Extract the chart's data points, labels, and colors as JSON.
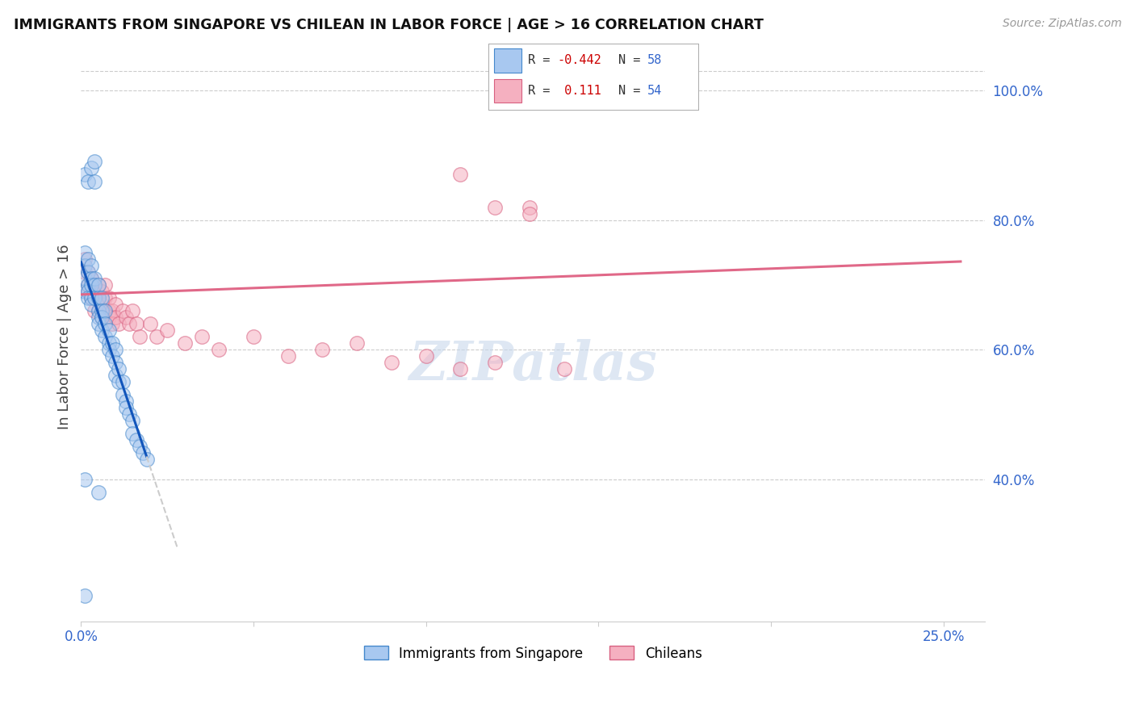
{
  "title": "IMMIGRANTS FROM SINGAPORE VS CHILEAN IN LABOR FORCE | AGE > 16 CORRELATION CHART",
  "source": "Source: ZipAtlas.com",
  "ylabel": "In Labor Force | Age > 16",
  "color_singapore": "#a8c8f0",
  "color_singapore_edge": "#4488cc",
  "color_chilean": "#f5b0c0",
  "color_chilean_edge": "#d86080",
  "color_line_singapore": "#1155bb",
  "color_line_chilean": "#e06888",
  "color_line_extrap": "#cccccc",
  "color_grid": "#cccccc",
  "color_tick_label": "#3366cc",
  "color_title": "#111111",
  "color_source": "#999999",
  "color_ylabel": "#444444",
  "xlim": [
    0.0,
    0.262
  ],
  "ylim": [
    0.18,
    1.06
  ],
  "x_ticks": [
    0.0,
    0.05,
    0.1,
    0.15,
    0.2,
    0.25
  ],
  "x_tick_labels": [
    "0.0%",
    "",
    "",
    "",
    "",
    "25.0%"
  ],
  "y_ticks_right": [
    0.4,
    0.6,
    0.8,
    1.0
  ],
  "y_tick_labels_right": [
    "40.0%",
    "60.0%",
    "80.0%",
    "100.0%"
  ],
  "legend_label1": "Immigrants from Singapore",
  "legend_label2": "Chileans",
  "scatter_size": 160,
  "scatter_alpha": 0.55,
  "line_width": 2.2,
  "singapore_x": [
    0.001,
    0.001,
    0.001,
    0.001,
    0.002,
    0.002,
    0.002,
    0.002,
    0.002,
    0.003,
    0.003,
    0.003,
    0.003,
    0.003,
    0.004,
    0.004,
    0.004,
    0.005,
    0.005,
    0.005,
    0.005,
    0.005,
    0.006,
    0.006,
    0.006,
    0.006,
    0.007,
    0.007,
    0.007,
    0.008,
    0.008,
    0.008,
    0.009,
    0.009,
    0.01,
    0.01,
    0.01,
    0.011,
    0.011,
    0.012,
    0.012,
    0.013,
    0.013,
    0.014,
    0.015,
    0.015,
    0.016,
    0.017,
    0.018,
    0.019,
    0.001,
    0.002,
    0.003,
    0.004,
    0.004,
    0.005,
    0.001,
    0.001
  ],
  "singapore_y": [
    0.75,
    0.73,
    0.71,
    0.69,
    0.74,
    0.72,
    0.7,
    0.69,
    0.68,
    0.73,
    0.71,
    0.7,
    0.68,
    0.67,
    0.71,
    0.7,
    0.68,
    0.7,
    0.68,
    0.66,
    0.65,
    0.64,
    0.68,
    0.66,
    0.65,
    0.63,
    0.66,
    0.64,
    0.62,
    0.63,
    0.61,
    0.6,
    0.61,
    0.59,
    0.6,
    0.58,
    0.56,
    0.57,
    0.55,
    0.55,
    0.53,
    0.52,
    0.51,
    0.5,
    0.49,
    0.47,
    0.46,
    0.45,
    0.44,
    0.43,
    0.87,
    0.86,
    0.88,
    0.86,
    0.89,
    0.38,
    0.4,
    0.22
  ],
  "chilean_x": [
    0.001,
    0.001,
    0.002,
    0.002,
    0.002,
    0.003,
    0.003,
    0.003,
    0.003,
    0.004,
    0.004,
    0.004,
    0.005,
    0.005,
    0.005,
    0.006,
    0.006,
    0.006,
    0.007,
    0.007,
    0.007,
    0.008,
    0.008,
    0.008,
    0.009,
    0.009,
    0.01,
    0.01,
    0.011,
    0.012,
    0.013,
    0.014,
    0.015,
    0.016,
    0.017,
    0.02,
    0.022,
    0.025,
    0.03,
    0.035,
    0.04,
    0.05,
    0.06,
    0.07,
    0.08,
    0.09,
    0.1,
    0.11,
    0.12,
    0.13,
    0.14,
    0.12,
    0.11,
    0.13
  ],
  "chilean_y": [
    0.72,
    0.74,
    0.7,
    0.72,
    0.69,
    0.71,
    0.69,
    0.68,
    0.71,
    0.7,
    0.68,
    0.66,
    0.7,
    0.68,
    0.66,
    0.69,
    0.67,
    0.65,
    0.68,
    0.66,
    0.7,
    0.66,
    0.68,
    0.65,
    0.66,
    0.64,
    0.67,
    0.65,
    0.64,
    0.66,
    0.65,
    0.64,
    0.66,
    0.64,
    0.62,
    0.64,
    0.62,
    0.63,
    0.61,
    0.62,
    0.6,
    0.62,
    0.59,
    0.6,
    0.61,
    0.58,
    0.59,
    0.87,
    0.58,
    0.82,
    0.57,
    0.82,
    0.57,
    0.81
  ]
}
